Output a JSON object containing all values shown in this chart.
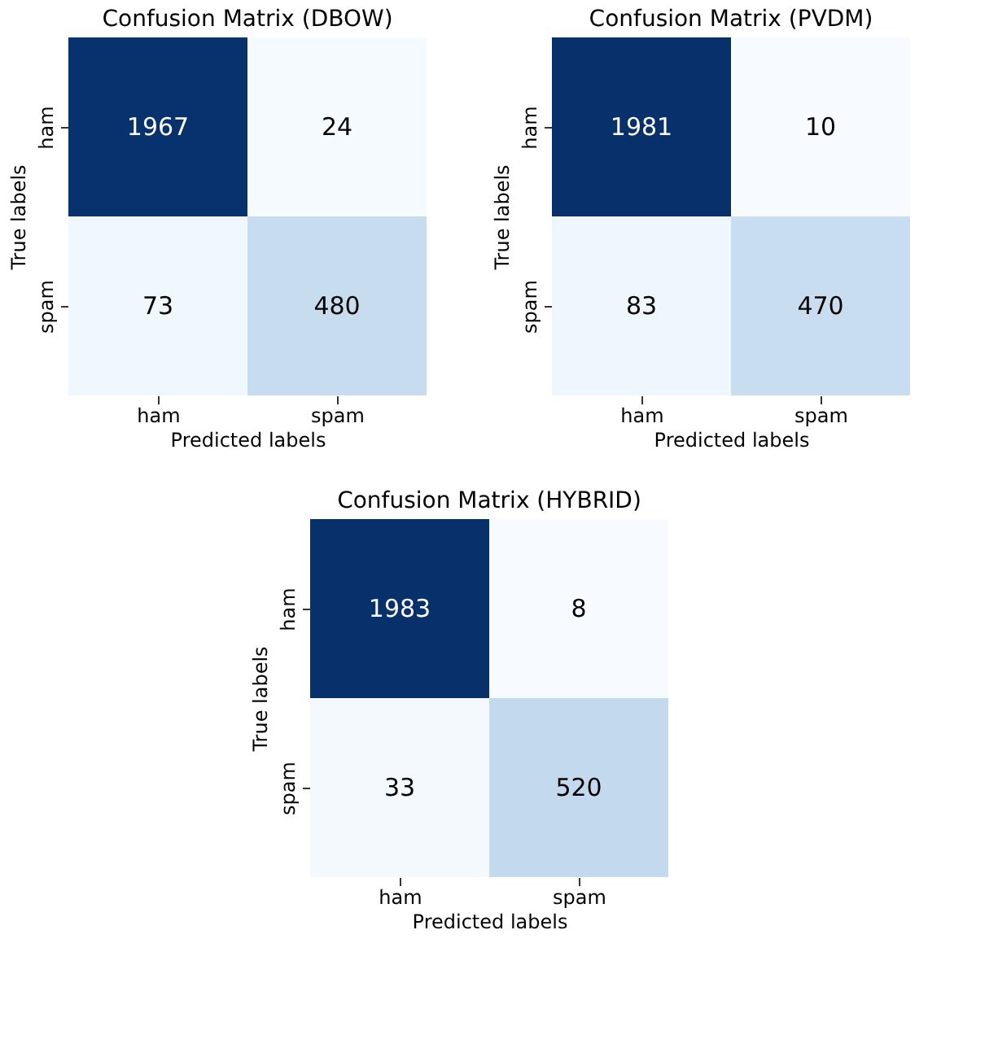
{
  "chart_data": [
    {
      "type": "heatmap",
      "title": "Confusion Matrix (DBOW)",
      "xlabel": "Predicted labels",
      "ylabel": "True labels",
      "categories": [
        "ham",
        "spam"
      ],
      "y_categories": [
        "ham",
        "spam"
      ],
      "cells": [
        [
          1967,
          24
        ],
        [
          73,
          480
        ]
      ],
      "data_labels": true,
      "grid": false,
      "legend": false
    },
    {
      "type": "heatmap",
      "title": "Confusion Matrix (PVDM)",
      "xlabel": "Predicted labels",
      "ylabel": "True labels",
      "categories": [
        "ham",
        "spam"
      ],
      "y_categories": [
        "ham",
        "spam"
      ],
      "cells": [
        [
          1981,
          10
        ],
        [
          83,
          470
        ]
      ],
      "data_labels": true,
      "grid": false,
      "legend": false
    },
    {
      "type": "heatmap",
      "title": "Confusion Matrix (HYBRID)",
      "xlabel": "Predicted labels",
      "ylabel": "True labels",
      "categories": [
        "ham",
        "spam"
      ],
      "y_categories": [
        "ham",
        "spam"
      ],
      "cells": [
        [
          1983,
          8
        ],
        [
          33,
          520
        ]
      ],
      "data_labels": true,
      "grid": false,
      "legend": false
    }
  ]
}
